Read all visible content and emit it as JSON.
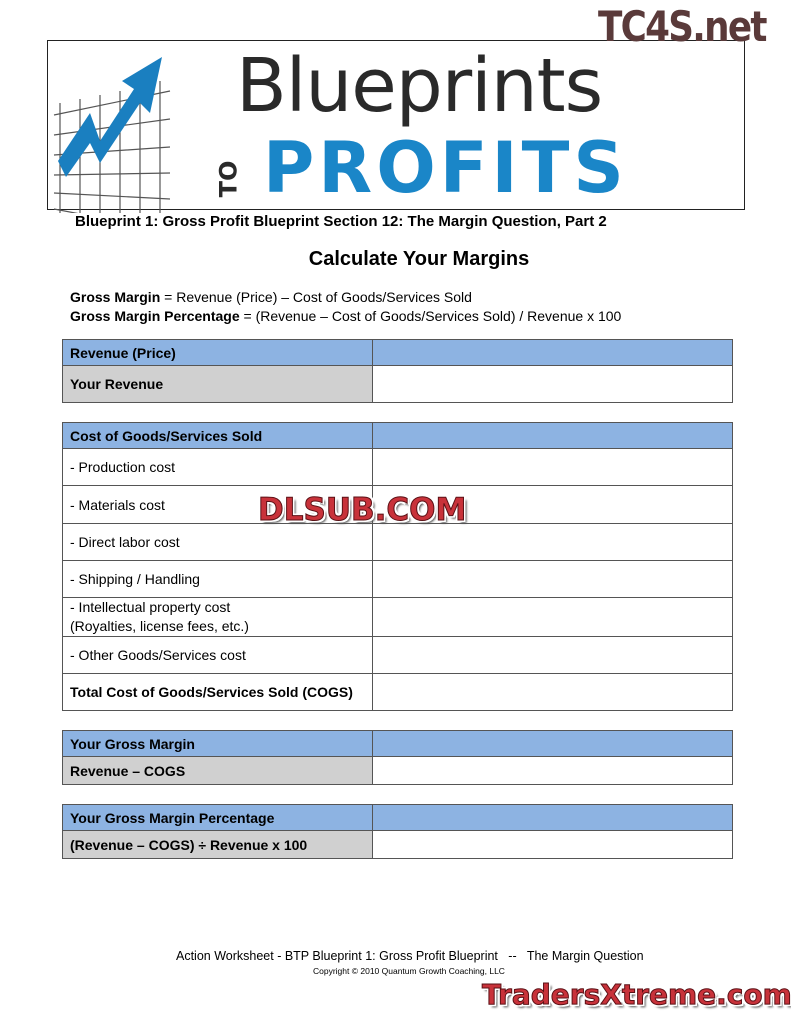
{
  "watermarks": {
    "top": "TC4S.net",
    "middle": "DLSUB.COM",
    "bottom": "TradersXtreme.com"
  },
  "logo": {
    "line1": "Blueprints",
    "to": "TO",
    "line2": "PROFITS",
    "accent": "#1a86c8"
  },
  "subtitle": "Blueprint 1: Gross Profit Blueprint Section 12: The Margin Question, Part 2",
  "title": "Calculate Your Margins",
  "formulas": [
    {
      "term": "Gross Margin",
      "def": " = Revenue (Price) – Cost of Goods/Services Sold"
    },
    {
      "term": "Gross Margin Percentage",
      "def": " = (Revenue – Cost of Goods/Services Sold) / Revenue x 100"
    }
  ],
  "tables": {
    "revenue": {
      "header": "Revenue (Price)",
      "rows": [
        "Your Revenue"
      ]
    },
    "cogs": {
      "header": "Cost of Goods/Services Sold",
      "rows": [
        "- Production cost",
        "- Materials cost",
        "- Direct labor cost",
        "- Shipping / Handling",
        "- Intellectual property cost",
        "(Royalties, license fees, etc.)",
        "- Other Goods/Services cost",
        "Total Cost of Goods/Services Sold (COGS)"
      ]
    },
    "gross_margin": {
      "header": "Your Gross Margin",
      "rows": [
        "Revenue – COGS"
      ]
    },
    "gross_margin_pct": {
      "header": "Your Gross Margin Percentage",
      "rows": [
        "(Revenue – COGS) ÷ Revenue x 100"
      ]
    }
  },
  "footer": {
    "line1": "Action Worksheet - BTP Blueprint 1: Gross Profit Blueprint   --   The Margin Question",
    "copyright": "Copyright © 2010 Quantum Growth Coaching, LLC"
  },
  "colors": {
    "header_blue": "#8db3e2",
    "label_gray": "#d0d0d0"
  }
}
